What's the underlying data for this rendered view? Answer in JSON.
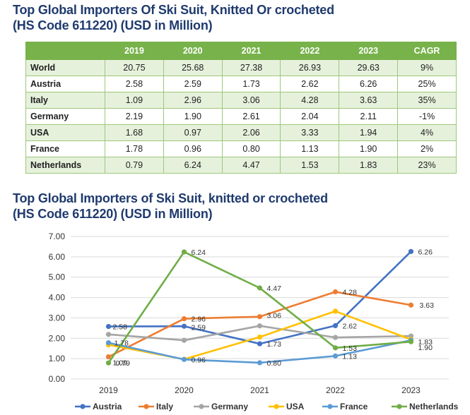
{
  "table_title": "Top Global Importers Of Ski Suit, Knitted Or crocheted (HS Code 611220) (USD in Million)",
  "table_title_lines": [
    "Top Global Importers Of Ski Suit, Knitted Or crocheted",
    "(HS Code 611220) (USD in Million)"
  ],
  "table": {
    "headers": [
      "",
      "2019",
      "2020",
      "2021",
      "2022",
      "2023",
      "CAGR"
    ],
    "rows": [
      {
        "name": "World",
        "values": [
          "20.75",
          "25.68",
          "27.38",
          "26.93",
          "29.63"
        ],
        "cagr": "9%"
      },
      {
        "name": "Austria",
        "values": [
          "2.58",
          "2.59",
          "1.73",
          "2.62",
          "6.26"
        ],
        "cagr": "25%"
      },
      {
        "name": "Italy",
        "values": [
          "1.09",
          "2.96",
          "3.06",
          "4.28",
          "3.63"
        ],
        "cagr": "35%"
      },
      {
        "name": "Germany",
        "values": [
          "2.19",
          "1.90",
          "2.61",
          "2.04",
          "2.11"
        ],
        "cagr": "-1%"
      },
      {
        "name": "USA",
        "values": [
          "1.68",
          "0.97",
          "2.06",
          "3.33",
          "1.94"
        ],
        "cagr": "4%"
      },
      {
        "name": "France",
        "values": [
          "1.78",
          "0.96",
          "0.80",
          "1.13",
          "1.90"
        ],
        "cagr": "2%"
      },
      {
        "name": "Netherlands",
        "values": [
          "0.79",
          "6.24",
          "4.47",
          "1.53",
          "1.83"
        ],
        "cagr": "23%"
      }
    ]
  },
  "chart_data": {
    "type": "line",
    "title": "Top Global Importers of Ski Suit, knitted or crocheted (HS Code 611220) (USD in Million)",
    "title_lines": [
      "Top Global Importers of Ski Suit, knitted or crocheted",
      "(HS Code 611220) (USD in Million)"
    ],
    "x": [
      "2019",
      "2020",
      "2021",
      "2022",
      "2023"
    ],
    "ylim": [
      0,
      7
    ],
    "yticks": [
      "0.00",
      "1.00",
      "2.00",
      "3.00",
      "4.00",
      "5.00",
      "6.00",
      "7.00"
    ],
    "grid": true,
    "legend_position": "bottom",
    "series": [
      {
        "name": "Austria",
        "color": "#4472c4",
        "values": [
          2.58,
          2.59,
          1.73,
          2.62,
          6.26
        ],
        "labels": [
          "2.58",
          "2.59",
          "1.73",
          "2.62",
          "6.26"
        ]
      },
      {
        "name": "Italy",
        "color": "#ed7d31",
        "values": [
          1.09,
          2.96,
          3.06,
          4.28,
          3.63
        ],
        "labels": [
          "1.09",
          "2.96",
          "3.06",
          "4.28",
          "3.63"
        ]
      },
      {
        "name": "Germany",
        "color": "#a5a5a5",
        "values": [
          2.19,
          1.9,
          2.61,
          2.04,
          2.11
        ],
        "labels": []
      },
      {
        "name": "USA",
        "color": "#ffc000",
        "values": [
          1.68,
          0.97,
          2.06,
          3.33,
          1.94
        ],
        "labels": []
      },
      {
        "name": "France",
        "color": "#5b9bd5",
        "values": [
          1.78,
          0.96,
          0.8,
          1.13,
          1.9
        ],
        "labels": [
          "1.78",
          "0.96",
          "0.80",
          "1.13",
          "1.90"
        ]
      },
      {
        "name": "Netherlands",
        "color": "#70ad47",
        "values": [
          0.79,
          6.24,
          4.47,
          1.53,
          1.83
        ],
        "labels": [
          "0.79",
          "6.24",
          "4.47",
          "1.53",
          "1.83"
        ]
      }
    ]
  }
}
